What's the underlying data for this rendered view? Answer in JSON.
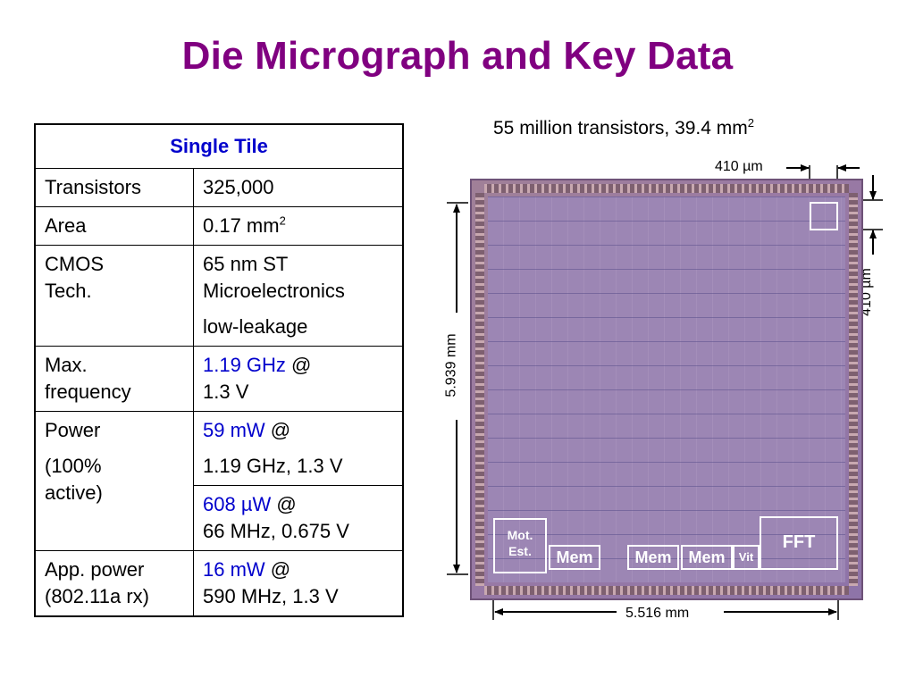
{
  "slide": {
    "title": "Die Micrograph and Key Data"
  },
  "table": {
    "header": "Single Tile",
    "rows": {
      "transistors": {
        "label": "Transistors",
        "value": "325,000"
      },
      "area": {
        "label": "Area",
        "value": "0.17 mm",
        "value_sup": "2"
      },
      "cmos": {
        "label_line1": "CMOS",
        "label_line2": "Tech.",
        "value_line1": "65 nm ST",
        "value_line2": "Microelectronics",
        "value_line3": "low-leakage"
      },
      "freq": {
        "label_line1": "Max.",
        "label_line2": "frequency",
        "value_hl": "1.19 GHz",
        "value_at": " @",
        "value_line2": "1.3 V"
      },
      "power": {
        "label_line1": "Power",
        "label_line2": "(100%",
        "label_line3": "active)",
        "value1_hl": "59 mW",
        "value1_at": " @",
        "value1_line2": "1.19 GHz, 1.3 V",
        "value2_hl": "608 µW",
        "value2_at": " @",
        "value2_line2": "66 MHz, 0.675 V"
      },
      "app_power": {
        "label_line1": "App. power",
        "label_line2": "(802.11a rx)",
        "value_hl": "16 mW",
        "value_at": " @",
        "value_line2": "590 MHz, 1.3 V"
      }
    }
  },
  "die": {
    "caption": "55 million transistors, 39.4 mm",
    "caption_sup": "2",
    "tile_width_label": "410 µm",
    "tile_height_label": "410 µm",
    "die_height_label": "5.939 mm",
    "die_width_label": "5.516 mm",
    "blocks": {
      "mot_est_line1": "Mot.",
      "mot_est_line2": "Est.",
      "mem1": "Mem",
      "mem2": "Mem",
      "mem3": "Mem",
      "vit": "Vit",
      "fft": "FFT"
    }
  },
  "colors": {
    "title": "#800080",
    "highlight": "#0000cc"
  }
}
